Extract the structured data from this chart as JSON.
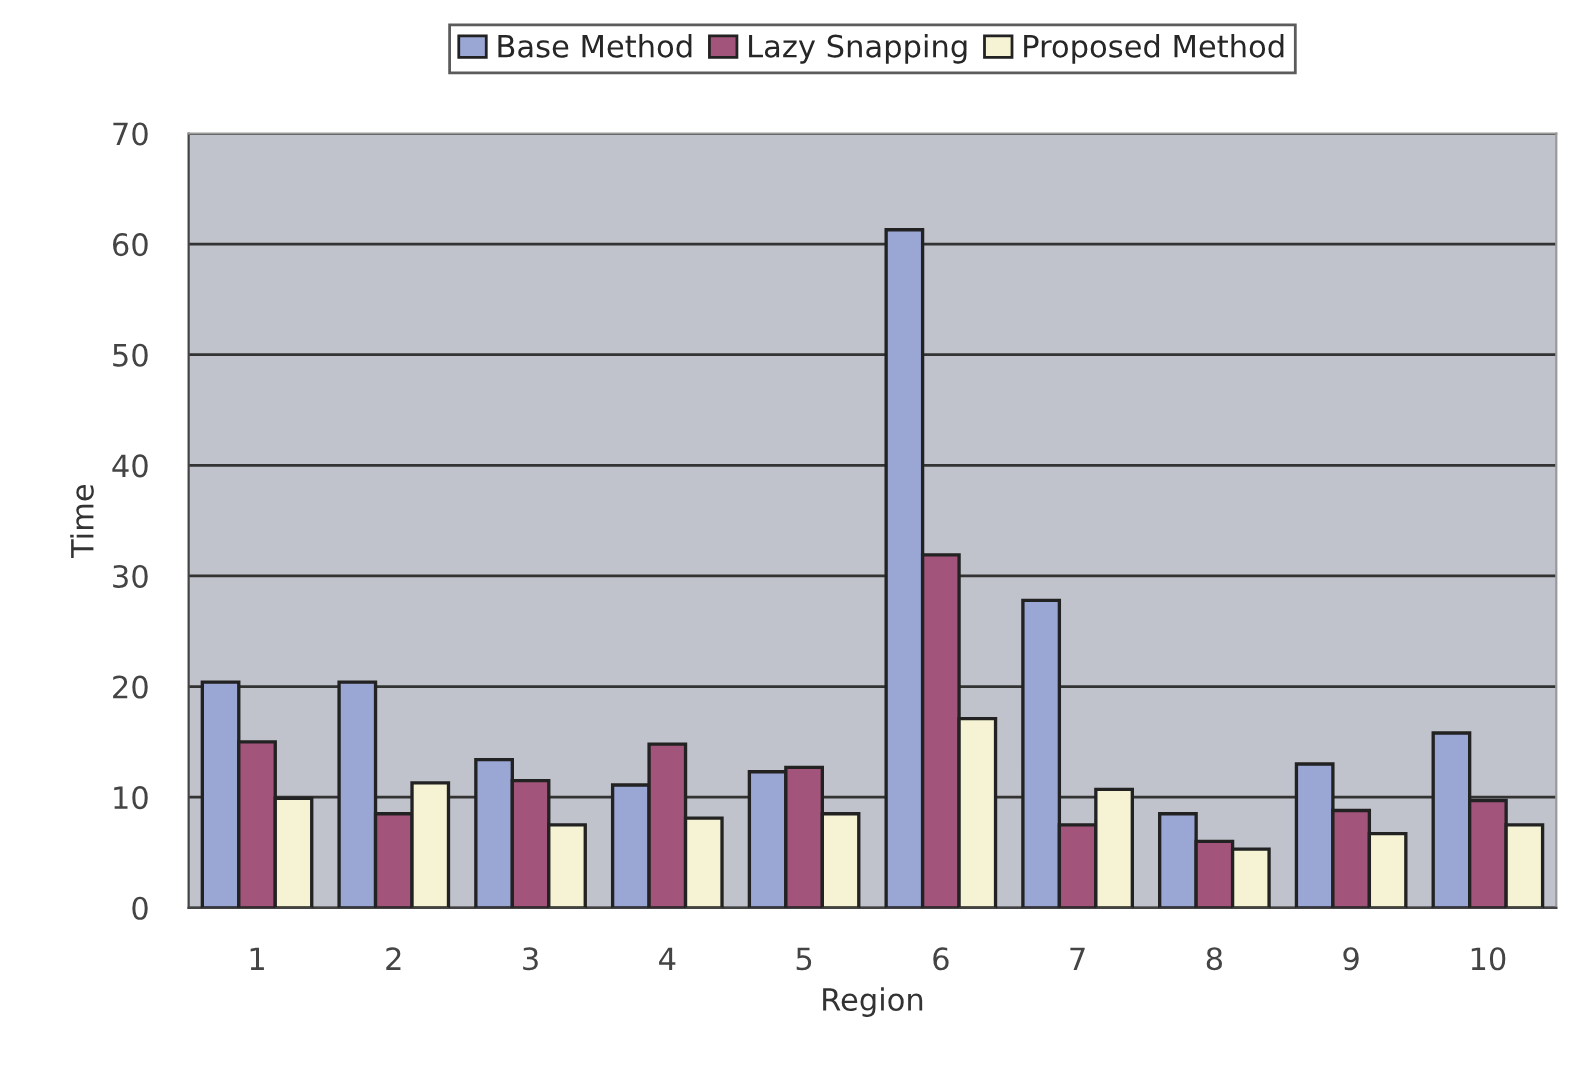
{
  "chart_data": {
    "type": "bar",
    "xlabel": "Region",
    "ylabel": "Time",
    "categories": [
      "1",
      "2",
      "3",
      "4",
      "5",
      "6",
      "7",
      "8",
      "9",
      "10"
    ],
    "series": [
      {
        "name": "Base Method",
        "color": "#9aa6d4",
        "values": [
          20.4,
          20.4,
          13.4,
          11.1,
          12.3,
          61.3,
          27.8,
          8.5,
          13.0,
          15.8
        ]
      },
      {
        "name": "Lazy Snapping",
        "color": "#a2547a",
        "values": [
          15.0,
          8.5,
          11.5,
          14.8,
          12.7,
          31.9,
          7.5,
          6.0,
          8.8,
          9.7
        ]
      },
      {
        "name": "Proposed Method",
        "color": "#f5f3d3",
        "values": [
          9.9,
          11.3,
          7.5,
          8.1,
          8.5,
          17.1,
          10.7,
          5.3,
          6.7,
          7.5
        ]
      }
    ],
    "ylim": [
      0,
      70
    ],
    "yticks": [
      0,
      10,
      20,
      30,
      40,
      50,
      60,
      70
    ],
    "grid": "y",
    "legend": "top"
  }
}
